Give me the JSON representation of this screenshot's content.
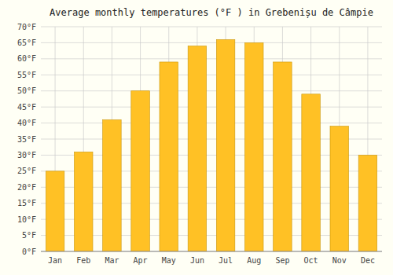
{
  "chart_data": {
    "type": "bar",
    "title": "Average monthly temperatures (°F ) in Grebenișu de Câmpie",
    "categories": [
      "Jan",
      "Feb",
      "Mar",
      "Apr",
      "May",
      "Jun",
      "Jul",
      "Aug",
      "Sep",
      "Oct",
      "Nov",
      "Dec"
    ],
    "values": [
      25,
      31,
      41,
      50,
      59,
      64,
      66,
      65,
      59,
      49,
      39,
      30
    ],
    "color": "#FFC125",
    "ylim": [
      0,
      70
    ],
    "yticks": [
      {
        "value": 0,
        "label": "0°F"
      },
      {
        "value": 5,
        "label": "5°F"
      },
      {
        "value": 10,
        "label": "10°F"
      },
      {
        "value": 15,
        "label": "15°F"
      },
      {
        "value": 20,
        "label": "20°F"
      },
      {
        "value": 25,
        "label": "25°F"
      },
      {
        "value": 30,
        "label": "30°F"
      },
      {
        "value": 35,
        "label": "35°F"
      },
      {
        "value": 40,
        "label": "40°F"
      },
      {
        "value": 45,
        "label": "45°F"
      },
      {
        "value": 50,
        "label": "50°F"
      },
      {
        "value": 55,
        "label": "55°F"
      },
      {
        "value": 60,
        "label": "60°F"
      },
      {
        "value": 65,
        "label": "65°F"
      },
      {
        "value": 70,
        "label": "70°F"
      }
    ],
    "grid": true
  }
}
